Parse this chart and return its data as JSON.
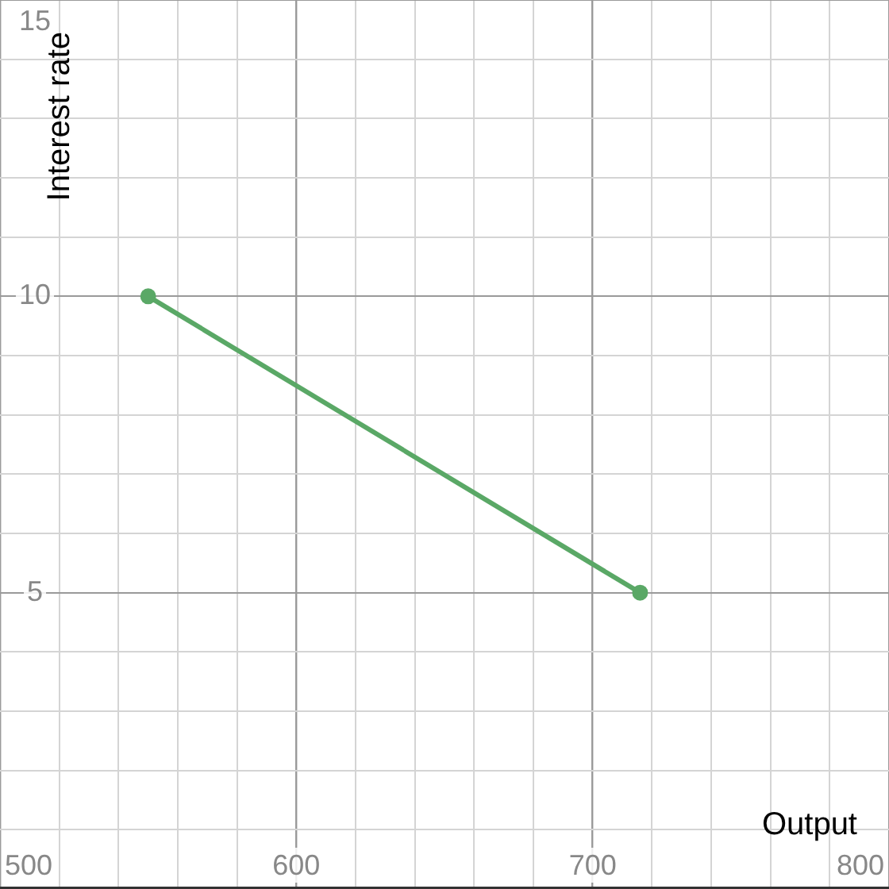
{
  "chart_data": {
    "type": "line",
    "xlabel": "Output",
    "ylabel": "Interest rate",
    "x": [
      550,
      716
    ],
    "series": [
      {
        "color": "#5aa866",
        "values": [
          10,
          5
        ]
      }
    ],
    "xlim": [
      500,
      800
    ],
    "ylim": [
      0,
      15
    ],
    "xticks": [
      500,
      {
        "value": 520,
        "label": null
      },
      {
        "value": 540,
        "label": null
      },
      {
        "value": 560,
        "label": null
      },
      {
        "value": 580,
        "label": null
      },
      600,
      {
        "value": 620,
        "label": null
      },
      {
        "value": 640,
        "label": null
      },
      {
        "value": 660,
        "label": null
      },
      {
        "value": 680,
        "label": null
      },
      700,
      {
        "value": 720,
        "label": null
      },
      {
        "value": 740,
        "label": null
      },
      {
        "value": 760,
        "label": null
      },
      {
        "value": 780,
        "label": null
      },
      800
    ],
    "yticks": [
      {
        "value": 1,
        "label": null
      },
      {
        "value": 2,
        "label": null
      },
      {
        "value": 3,
        "label": null
      },
      {
        "value": 4,
        "label": null
      },
      5,
      {
        "value": 6,
        "label": null
      },
      {
        "value": 7,
        "label": null
      },
      {
        "value": 8,
        "label": null
      },
      {
        "value": 9,
        "label": null
      },
      10,
      {
        "value": 11,
        "label": null
      },
      {
        "value": 12,
        "label": null
      },
      {
        "value": 13,
        "label": null
      },
      {
        "value": 14,
        "label": null
      },
      15
    ],
    "grid": true,
    "marker": "circle",
    "line_style": "solid",
    "legend": false
  }
}
